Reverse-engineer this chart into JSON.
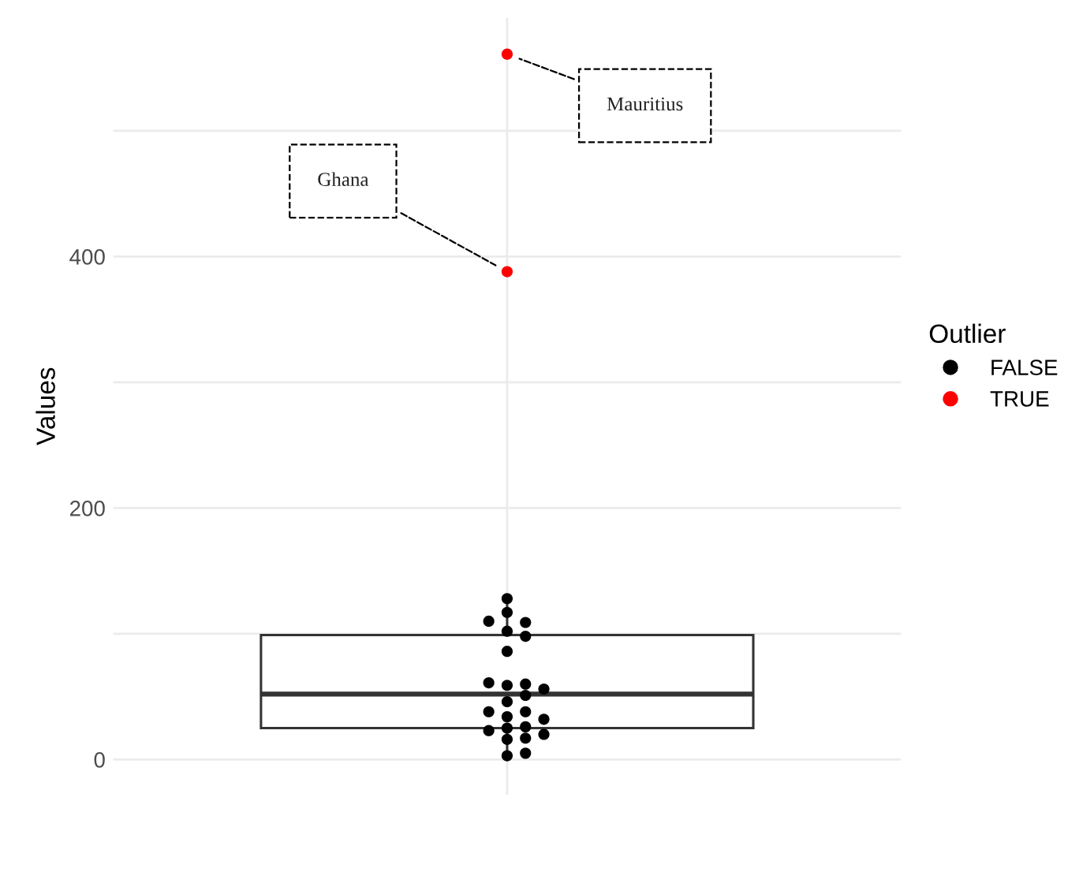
{
  "chart_data": {
    "type": "box",
    "ylabel": "Values",
    "legend_title": "Outlier",
    "categories": [
      null
    ],
    "boxes": [
      {
        "low": 3,
        "q1": 25,
        "median": 52,
        "q3": 99,
        "high": 129
      }
    ],
    "series": [
      {
        "name": "FALSE",
        "type": "scatter",
        "color": "#000000",
        "x": [
          null,
          null,
          null,
          null,
          null,
          null,
          null,
          null,
          null,
          null,
          null,
          null,
          null,
          null,
          null,
          null,
          null,
          null,
          null,
          null,
          null,
          null,
          null,
          null,
          null
        ],
        "values": [
          128,
          117,
          109,
          110,
          102,
          98,
          86,
          59,
          60,
          61,
          56,
          51,
          46,
          38,
          38,
          34,
          32,
          25,
          26,
          23,
          17,
          20,
          16,
          3,
          5
        ]
      },
      {
        "name": "TRUE",
        "type": "scatter",
        "color": "#ff0000",
        "x": [
          null,
          null
        ],
        "values": [
          388,
          561
        ]
      }
    ],
    "annotations": [
      "Ghana",
      "Mauritius"
    ],
    "tick_labels": "y",
    "ylim": [
      -28,
      590
    ],
    "yticks": [
      0,
      {
        "value": 100,
        "label": null
      },
      200,
      {
        "value": 300,
        "label": null
      },
      400,
      {
        "value": 500,
        "label": null
      }
    ],
    "grid": true,
    "legend": "right",
    "marker": "circle"
  }
}
